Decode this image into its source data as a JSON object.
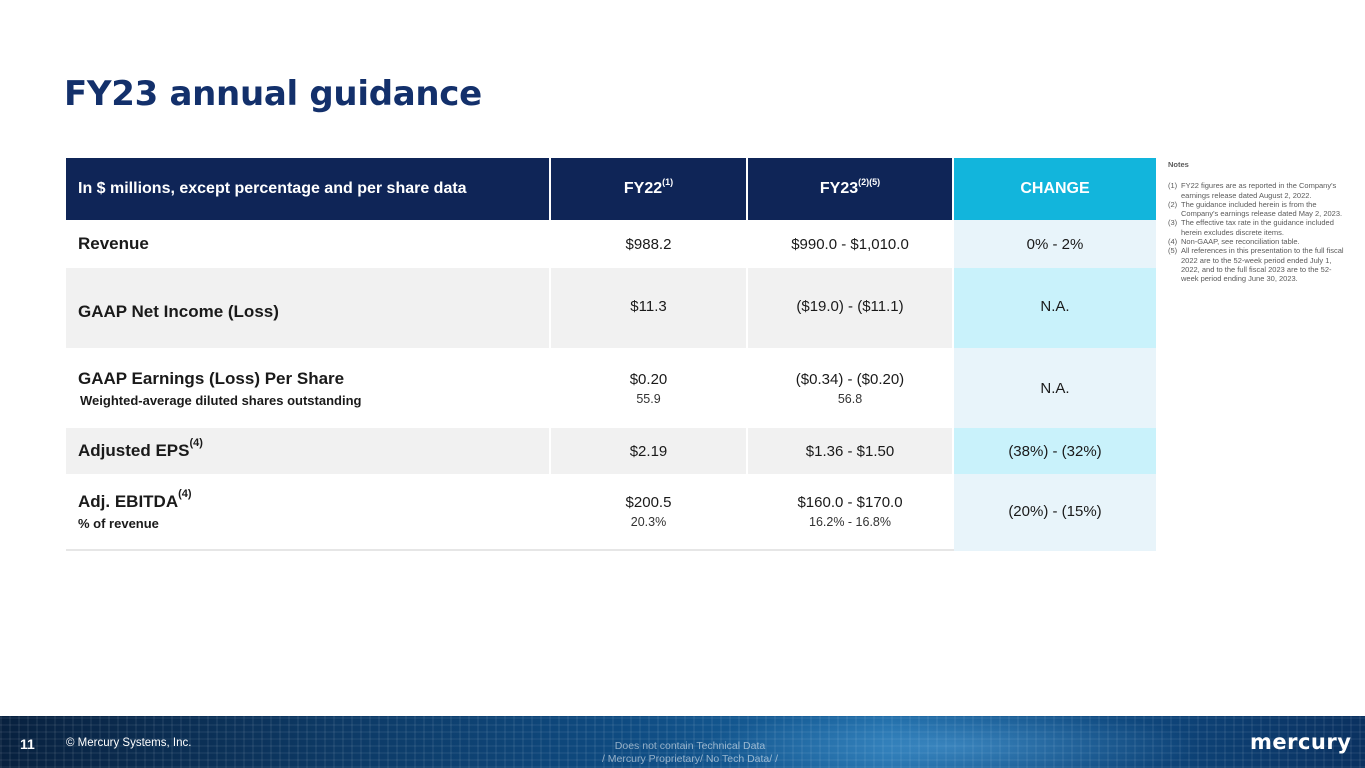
{
  "title": "FY23 annual guidance",
  "table": {
    "header": {
      "col1": "In $ millions, except percentage and per share data",
      "col2": "FY22",
      "col2_sup": "(1)",
      "col3": "FY23",
      "col3_sup": "(2)(5)",
      "col4": "CHANGE"
    },
    "rows": [
      {
        "label": "Revenue",
        "fy22": "$988.2",
        "fy23": "$990.0 - $1,010.0",
        "change": "0% - 2%"
      },
      {
        "label": "GAAP Net Income (Loss)",
        "fy22": "$11.3",
        "fy23": "($19.0) - ($11.1)",
        "change": "N.A."
      },
      {
        "label": "GAAP Earnings (Loss) Per Share",
        "sublabel": "Weighted-average diluted shares outstanding",
        "fy22": "$0.20",
        "fy22_sub": "55.9",
        "fy23": "($0.34) - ($0.20)",
        "fy23_sub": "56.8",
        "change": "N.A."
      },
      {
        "label": "Adjusted EPS",
        "label_sup": "(4)",
        "fy22": "$2.19",
        "fy23": "$1.36 - $1.50",
        "change": "(38%) - (32%)"
      },
      {
        "label": "Adj. EBITDA",
        "label_sup": "(4)",
        "sublabel": "% of revenue",
        "fy22": "$200.5",
        "fy22_sub": "20.3%",
        "fy23": "$160.0 - $170.0",
        "fy23_sub": "16.2% - 16.8%",
        "change": "(20%) - (15%)"
      }
    ]
  },
  "notes": {
    "title": "Notes",
    "items": [
      {
        "num": "(1)",
        "text": "FY22 figures are as reported in the Company's earnings release dated August 2, 2022."
      },
      {
        "num": "(2)",
        "text": "The guidance included herein is from the Company's earnings release dated May 2, 2023."
      },
      {
        "num": "(3)",
        "text": "The effective tax rate in the guidance included herein excludes discrete items."
      },
      {
        "num": "(4)",
        "text": "Non-GAAP, see reconciliation table."
      },
      {
        "num": "(5)",
        "text": "All references in this presentation to the full fiscal 2022 are to the 52-week period ended July 1, 2022, and to the full fiscal 2023 are to the 52-week period ending June 30, 2023."
      }
    ]
  },
  "footer": {
    "page_number": "11",
    "copyright": "© Mercury Systems, Inc.",
    "classification_line1": "Does not contain Technical Data",
    "classification_line2": "/ Mercury Proprietary/ No Tech Data/ /",
    "logo": "mercury"
  },
  "colors": {
    "title": "#13306b",
    "header_bg": "#0f2557",
    "change_header_bg": "#12b5dc",
    "change_light": "#e8f4fa",
    "change_bright": "#c9f2fb",
    "row_gray": "#f1f1f1"
  }
}
